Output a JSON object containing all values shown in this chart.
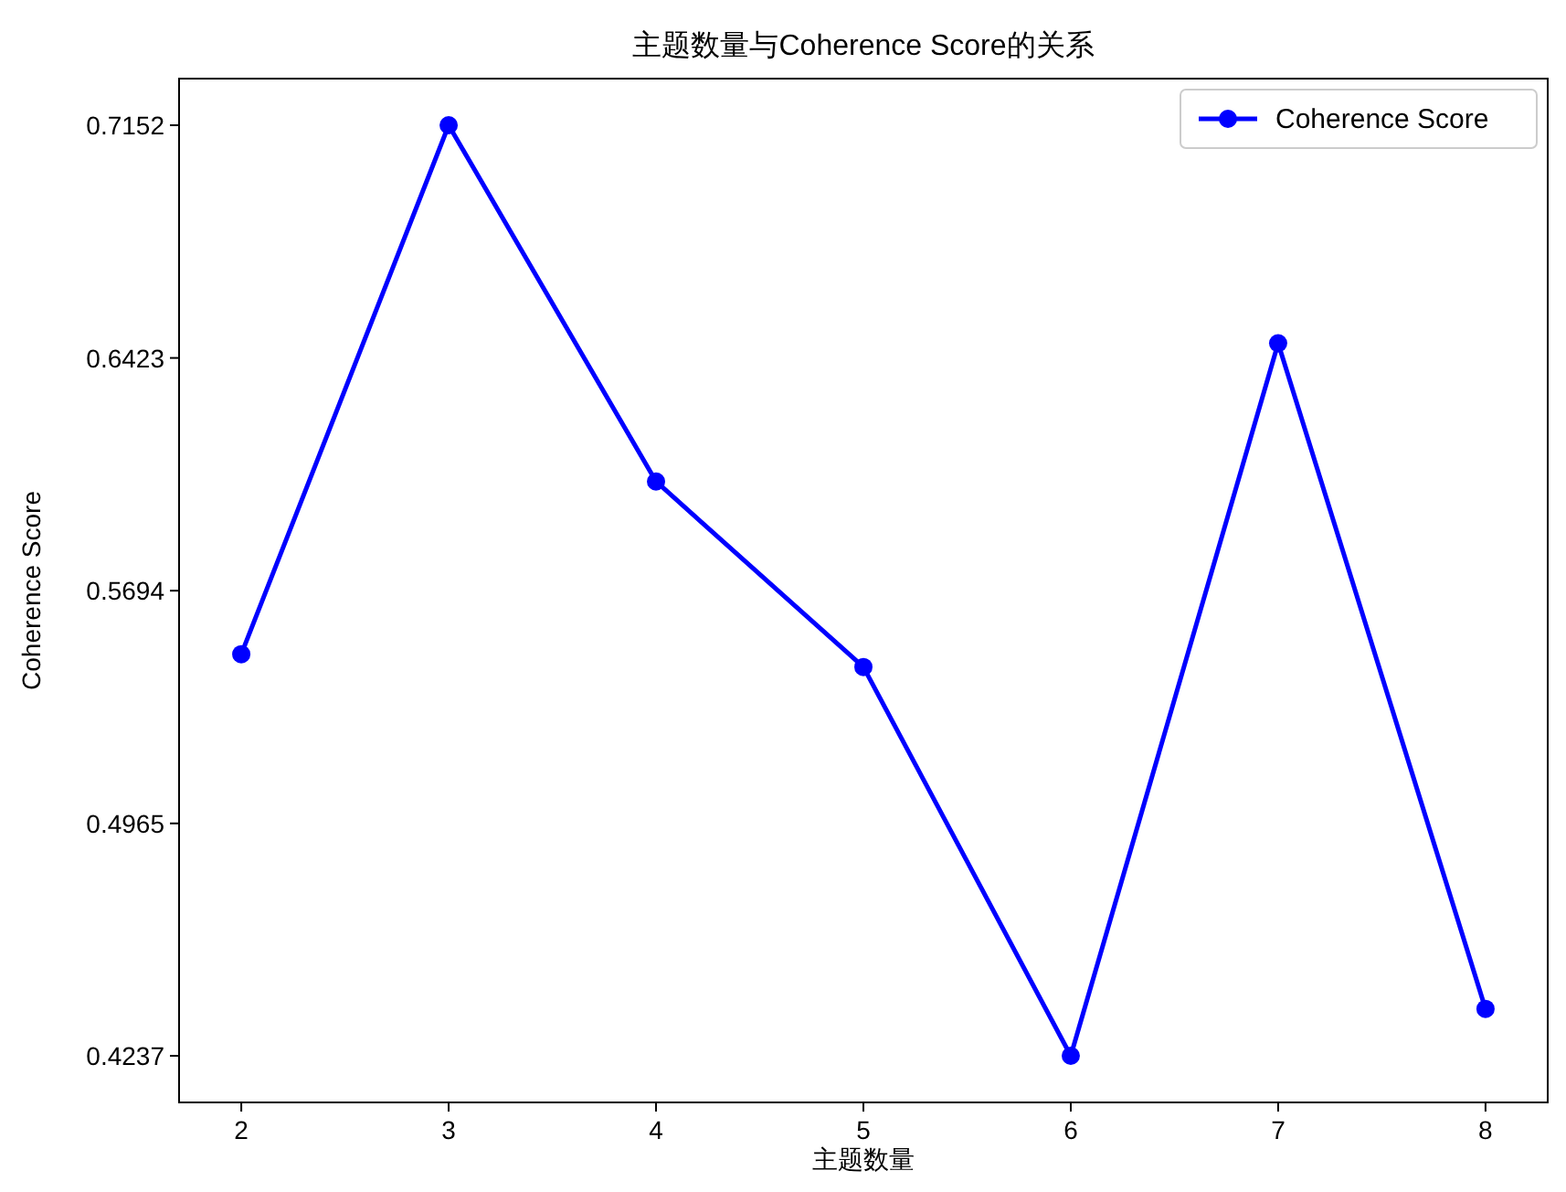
{
  "chart_data": {
    "type": "line",
    "title": "主题数量与Coherence Score的关系",
    "xlabel": "主题数量",
    "ylabel": "Coherence Score",
    "x": [
      2,
      3,
      4,
      5,
      6,
      7,
      8
    ],
    "series": [
      {
        "name": "Coherence Score",
        "color": "#0000ff",
        "values": [
          0.5495,
          0.7152,
          0.6036,
          0.5455,
          0.4237,
          0.6469,
          0.4384
        ]
      }
    ],
    "xlim": [
      1.7,
      8.3
    ],
    "xticks": [
      2,
      3,
      4,
      5,
      6,
      7,
      8
    ],
    "ylim": [
      0.4091,
      0.7298
    ],
    "yticks": [
      0.4237,
      0.4965,
      0.5694,
      0.6423,
      0.7152
    ],
    "grid": false,
    "legend": "top right",
    "marker": "circle",
    "line_style": "solid"
  }
}
